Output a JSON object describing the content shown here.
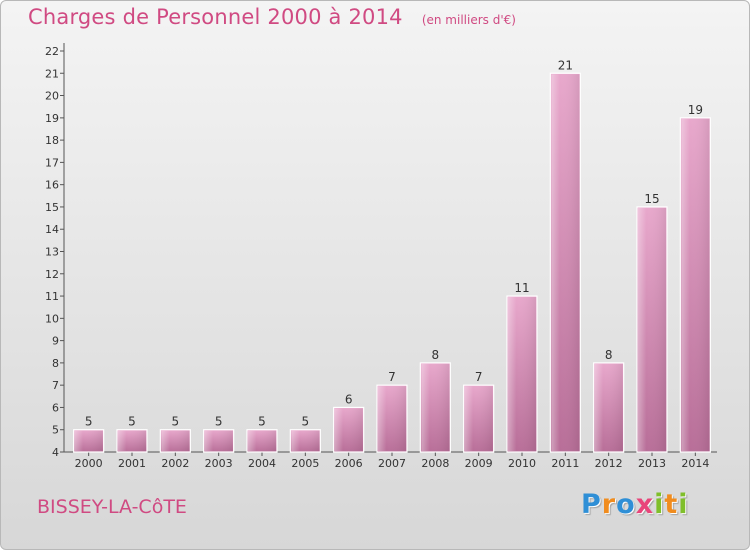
{
  "chart_data": {
    "type": "bar",
    "title": "Charges de Personnel 2000 à 2014",
    "unit": "(en milliers d'€)",
    "categories": [
      "2000",
      "2001",
      "2002",
      "2003",
      "2004",
      "2005",
      "2006",
      "2007",
      "2008",
      "2009",
      "2010",
      "2011",
      "2012",
      "2013",
      "2014"
    ],
    "values": [
      5,
      5,
      5,
      5,
      5,
      5,
      6,
      7,
      8,
      7,
      11,
      21,
      8,
      15,
      19
    ],
    "ylim": [
      4,
      22
    ],
    "yticks": [
      4,
      5,
      6,
      7,
      8,
      9,
      10,
      11,
      12,
      13,
      14,
      15,
      16,
      17,
      18,
      19,
      20,
      21,
      22
    ],
    "grid": false,
    "bar_color": "#d88bb4",
    "accent_color": "#d04a82"
  },
  "footer": {
    "commune": "BISSEY-LA-CôTE",
    "logo": [
      {
        "ch": "P",
        "color": "#2f8fd6"
      },
      {
        "ch": "r",
        "color": "#f08c1e"
      },
      {
        "ch": "o",
        "color": "#2f8fd6"
      },
      {
        "ch": "x",
        "color": "#e8457a"
      },
      {
        "ch": "i",
        "color": "#7fbf2a"
      },
      {
        "ch": "t",
        "color": "#f08c1e"
      },
      {
        "ch": "i",
        "color": "#7fbf2a"
      }
    ]
  }
}
